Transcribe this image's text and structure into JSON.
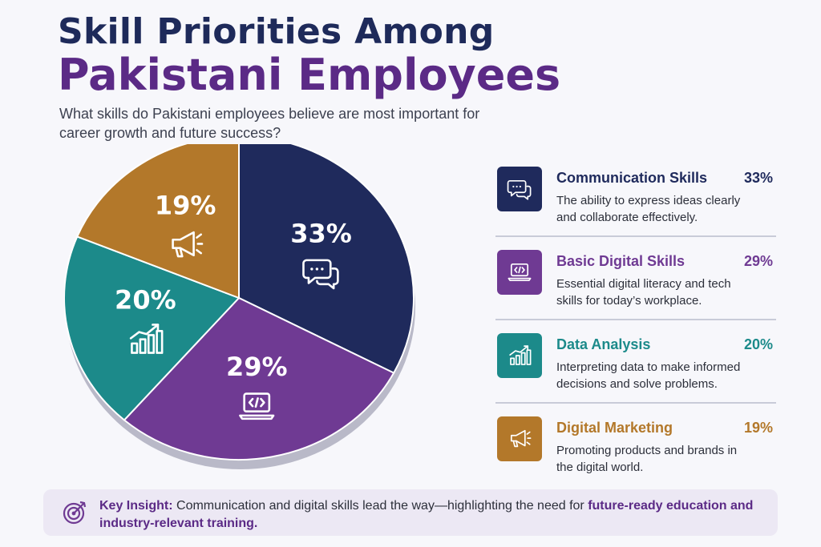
{
  "header": {
    "title_line1": "Skill Priorities Among",
    "title_line2": "Pakistani Employees",
    "subtitle": "What skills do Pakistani employees believe are most important for career growth and future success?"
  },
  "chart_data": {
    "type": "pie",
    "title": "Skill Priorities Among Pakistani Employees",
    "categories": [
      "Communication Skills",
      "Basic Digital Skills",
      "Data Analysis",
      "Digital Marketing"
    ],
    "values": [
      33,
      29,
      20,
      19
    ],
    "labels": [
      "33%",
      "29%",
      "20%",
      "19%"
    ],
    "colors": [
      "#1f2a5c",
      "#6f3a93",
      "#1c8a8a",
      "#b3782a"
    ],
    "icons": [
      "chat-bubbles-icon",
      "laptop-code-icon",
      "bar-chart-icon",
      "megaphone-icon"
    ]
  },
  "legend": [
    {
      "name": "Communication Skills",
      "pct": "33%",
      "desc": "The ability to express ideas clearly and collaborate effectively.",
      "color": "#1f2a5c",
      "icon": "chat-bubbles-icon"
    },
    {
      "name": "Basic Digital Skills",
      "pct": "29%",
      "desc": "Essential digital literacy and tech skills for today’s workplace.",
      "color": "#6f3a93",
      "icon": "laptop-code-icon"
    },
    {
      "name": "Data Analysis",
      "pct": "20%",
      "desc": "Interpreting data to make informed decisions and solve problems.",
      "color": "#1c8a8a",
      "icon": "bar-chart-icon"
    },
    {
      "name": "Digital Marketing",
      "pct": "19%",
      "desc": "Promoting products and brands in the digital world.",
      "color": "#b3782a",
      "icon": "megaphone-icon"
    }
  ],
  "insight": {
    "label": "Key Insight:",
    "text": "Communication and digital skills lead the way—highlighting the need for",
    "emphasis": "future-ready education and industry-relevant training.",
    "icon": "target-icon"
  }
}
